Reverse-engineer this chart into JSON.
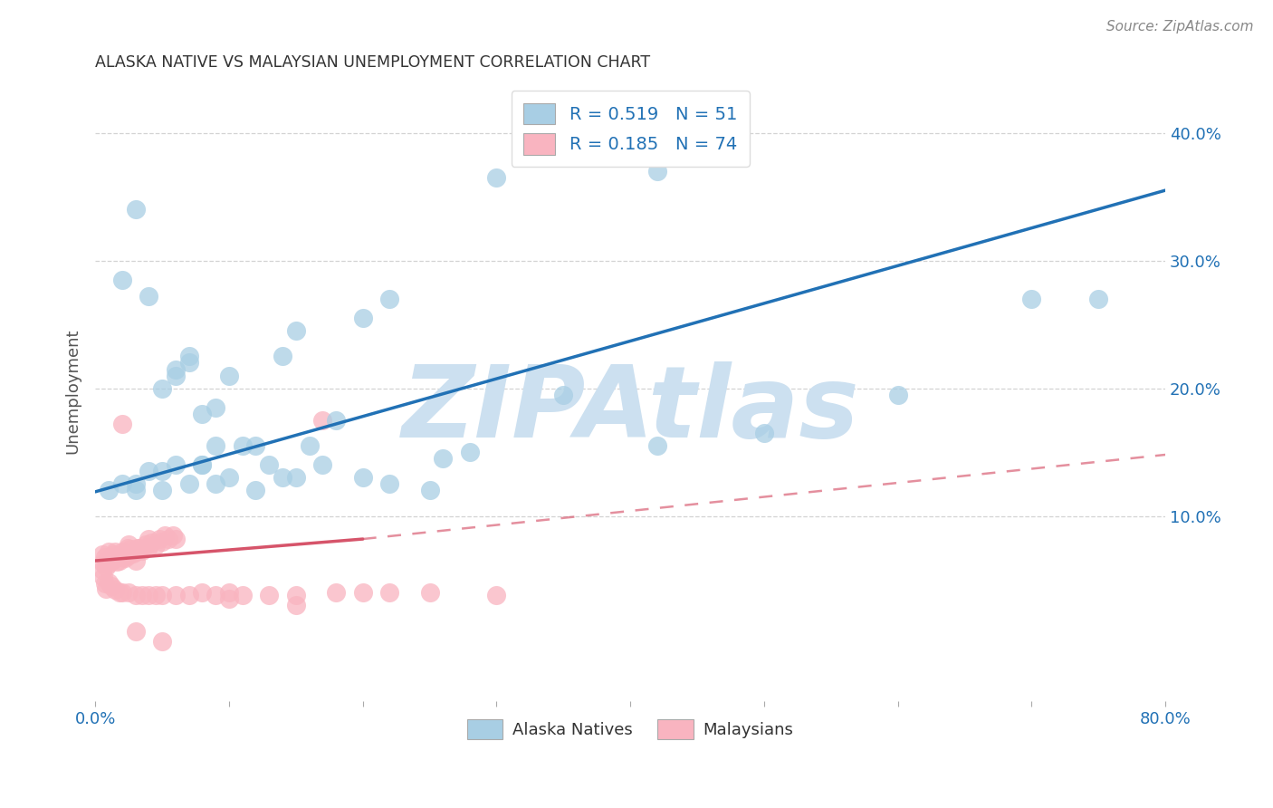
{
  "title": "ALASKA NATIVE VS MALAYSIAN UNEMPLOYMENT CORRELATION CHART",
  "source": "Source: ZipAtlas.com",
  "ylabel_label": "Unemployment",
  "xlim": [
    0,
    0.8
  ],
  "ylim": [
    -0.045,
    0.44
  ],
  "alaska_color": "#a8cee4",
  "malaysia_color": "#f9b4c0",
  "alaska_line_color": "#2171b5",
  "malaysia_line_color": "#d6546a",
  "background_color": "#ffffff",
  "grid_color": "#cccccc",
  "watermark_color": "#cce0f0",
  "legend_text_color": "#2171b5",
  "tick_color": "#2171b5",
  "title_color": "#333333",
  "source_color": "#888888",
  "ylabel_color": "#555555",
  "blue_line": [
    0.0,
    0.119,
    0.8,
    0.355
  ],
  "pink_solid_line": [
    0.0,
    0.065,
    0.2,
    0.082
  ],
  "pink_dash_line": [
    0.2,
    0.082,
    0.8,
    0.148
  ],
  "alaska_scatter_x": [
    0.02,
    0.04,
    0.03,
    0.07,
    0.06,
    0.09,
    0.1,
    0.06,
    0.08,
    0.05,
    0.07,
    0.08,
    0.09,
    0.12,
    0.13,
    0.14,
    0.15,
    0.17,
    0.2,
    0.22,
    0.26,
    0.3,
    0.35,
    0.42,
    0.5,
    0.6,
    0.7,
    0.02,
    0.03,
    0.04,
    0.05,
    0.06,
    0.07,
    0.08,
    0.09,
    0.1,
    0.11,
    0.12,
    0.14,
    0.16,
    0.18,
    0.2,
    0.22,
    0.25,
    0.28,
    0.75,
    0.01,
    0.03,
    0.05,
    0.15,
    0.42
  ],
  "alaska_scatter_y": [
    0.285,
    0.272,
    0.34,
    0.225,
    0.215,
    0.185,
    0.21,
    0.21,
    0.18,
    0.2,
    0.22,
    0.14,
    0.155,
    0.12,
    0.14,
    0.225,
    0.245,
    0.14,
    0.255,
    0.27,
    0.145,
    0.365,
    0.195,
    0.37,
    0.165,
    0.195,
    0.27,
    0.125,
    0.125,
    0.135,
    0.135,
    0.14,
    0.125,
    0.14,
    0.125,
    0.13,
    0.155,
    0.155,
    0.13,
    0.155,
    0.175,
    0.13,
    0.125,
    0.12,
    0.15,
    0.27,
    0.12,
    0.12,
    0.12,
    0.13,
    0.155
  ],
  "malaysia_scatter_x": [
    0.005,
    0.006,
    0.007,
    0.008,
    0.009,
    0.01,
    0.01,
    0.012,
    0.013,
    0.014,
    0.015,
    0.015,
    0.016,
    0.018,
    0.02,
    0.02,
    0.021,
    0.022,
    0.023,
    0.024,
    0.025,
    0.025,
    0.026,
    0.028,
    0.03,
    0.03,
    0.032,
    0.033,
    0.035,
    0.038,
    0.04,
    0.04,
    0.042,
    0.045,
    0.048,
    0.05,
    0.052,
    0.055,
    0.058,
    0.06,
    0.005,
    0.006,
    0.007,
    0.008,
    0.01,
    0.012,
    0.015,
    0.018,
    0.02,
    0.025,
    0.03,
    0.035,
    0.04,
    0.045,
    0.05,
    0.06,
    0.07,
    0.08,
    0.09,
    0.1,
    0.11,
    0.13,
    0.15,
    0.18,
    0.2,
    0.22,
    0.25,
    0.3,
    0.17,
    0.02,
    0.03,
    0.05,
    0.1,
    0.15
  ],
  "malaysia_scatter_y": [
    0.07,
    0.063,
    0.068,
    0.06,
    0.065,
    0.063,
    0.072,
    0.068,
    0.065,
    0.07,
    0.067,
    0.072,
    0.064,
    0.065,
    0.07,
    0.072,
    0.068,
    0.067,
    0.07,
    0.075,
    0.069,
    0.078,
    0.074,
    0.071,
    0.072,
    0.065,
    0.075,
    0.075,
    0.073,
    0.078,
    0.076,
    0.082,
    0.079,
    0.077,
    0.082,
    0.08,
    0.085,
    0.082,
    0.085,
    0.082,
    0.058,
    0.052,
    0.047,
    0.043,
    0.048,
    0.045,
    0.042,
    0.04,
    0.04,
    0.04,
    0.038,
    0.038,
    0.038,
    0.038,
    0.038,
    0.038,
    0.038,
    0.04,
    0.038,
    0.04,
    0.038,
    0.038,
    0.038,
    0.04,
    0.04,
    0.04,
    0.04,
    0.038,
    0.175,
    0.172,
    0.01,
    0.002,
    0.035,
    0.03
  ]
}
